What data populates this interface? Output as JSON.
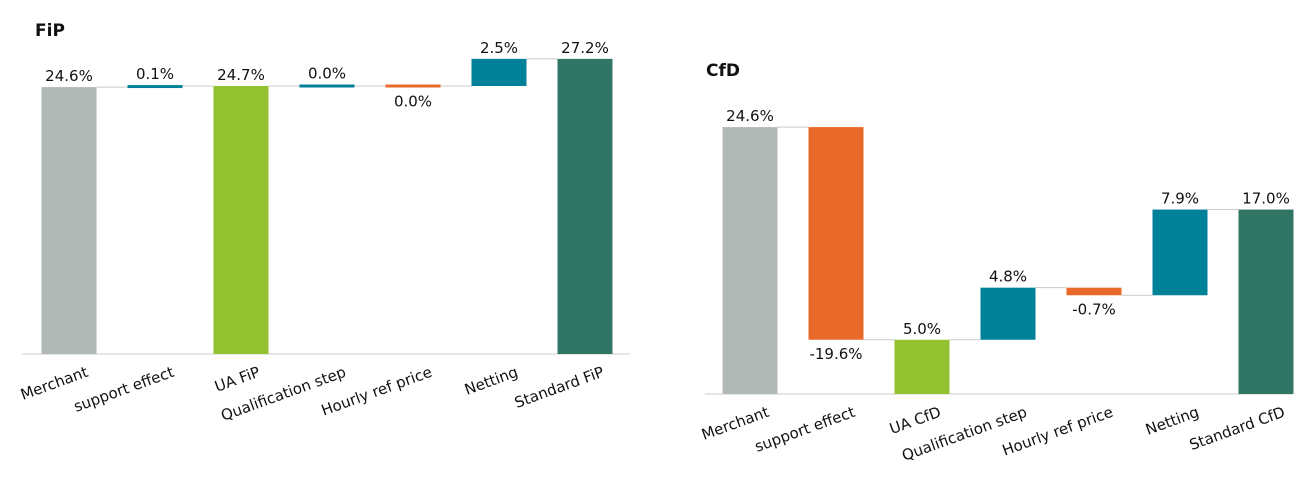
{
  "chart_data": [
    {
      "type": "waterfall",
      "title": "FiP",
      "categories": [
        "Merchant",
        "support effect",
        "UA FiP",
        "Qualification step",
        "Hourly ref price",
        "Netting",
        "Standard FiP"
      ],
      "measures": [
        "absolute",
        "relative",
        "absolute",
        "relative",
        "relative",
        "relative",
        "absolute"
      ],
      "values": [
        24.6,
        0.1,
        24.7,
        0.0,
        -0.0,
        2.5,
        27.2
      ],
      "value_labels": [
        "24.6%",
        "0.1%",
        "24.7%",
        "0.0%",
        "0.0%",
        "2.5%",
        "27.2%"
      ],
      "colors": [
        "#b1b9b6",
        "#00819a",
        "#94c130",
        "#00819a",
        "#e8692a",
        "#00819a",
        "#317564"
      ]
    },
    {
      "type": "waterfall",
      "title": "CfD",
      "categories": [
        "Merchant",
        "support effect",
        "UA CfD",
        "Qualification step",
        "Hourly ref price",
        "Netting",
        "Standard CfD"
      ],
      "measures": [
        "absolute",
        "relative",
        "absolute",
        "relative",
        "relative",
        "relative",
        "absolute"
      ],
      "values": [
        24.6,
        -19.6,
        5.0,
        4.8,
        -0.7,
        7.9,
        17.0
      ],
      "value_labels": [
        "24.6%",
        "-19.6%",
        "5.0%",
        "4.8%",
        "-0.7%",
        "7.9%",
        "17.0%"
      ],
      "colors": [
        "#b1b9b6",
        "#e8692a",
        "#94c130",
        "#00819a",
        "#e8692a",
        "#00819a",
        "#317564"
      ]
    }
  ]
}
